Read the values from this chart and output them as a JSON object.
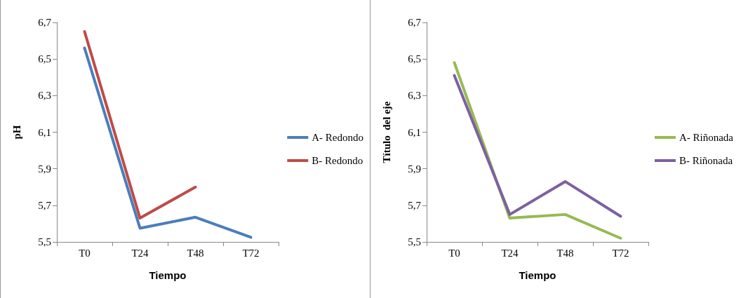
{
  "chart_data": [
    {
      "type": "line",
      "xlabel": "Tiempo",
      "ylabel": "pH",
      "categories": [
        "T0",
        "T24",
        "T48",
        "T72"
      ],
      "series": [
        {
          "name": "A- Redondo",
          "color": "#4a7ebb",
          "values": [
            6.56,
            5.575,
            5.635,
            5.525
          ]
        },
        {
          "name": "B- Redondo",
          "color": "#be4b48",
          "values": [
            6.65,
            5.63,
            5.8,
            null
          ]
        }
      ],
      "ylim": [
        5.5,
        6.7
      ],
      "yticks": [
        {
          "value": 5.5,
          "label": "5,5"
        },
        {
          "value": 5.7,
          "label": "5,7"
        },
        {
          "value": 5.9,
          "label": "5,9"
        },
        {
          "value": 6.1,
          "label": "6,1"
        },
        {
          "value": 6.3,
          "label": "6,3"
        },
        {
          "value": 6.5,
          "label": "6,5"
        },
        {
          "value": 6.7,
          "label": "6,7"
        }
      ],
      "legend": "right",
      "marker": "none",
      "line_style": "solid"
    },
    {
      "type": "line",
      "xlabel": "Tiempo",
      "ylabel": "Título  del eje",
      "categories": [
        "T0",
        "T24",
        "T48",
        "T72"
      ],
      "series": [
        {
          "name": "A- Riñonada",
          "color": "#98b954",
          "values": [
            6.48,
            5.63,
            5.65,
            5.52
          ]
        },
        {
          "name": "B- Riñonada",
          "color": "#7d60a0",
          "values": [
            6.41,
            5.65,
            5.83,
            5.64
          ]
        }
      ],
      "ylim": [
        5.5,
        6.7
      ],
      "yticks": [
        {
          "value": 5.5,
          "label": "5,5"
        },
        {
          "value": 5.7,
          "label": "5,7"
        },
        {
          "value": 5.9,
          "label": "5,9"
        },
        {
          "value": 6.1,
          "label": "6,1"
        },
        {
          "value": 6.3,
          "label": "6,3"
        },
        {
          "value": 6.5,
          "label": "6,5"
        },
        {
          "value": 6.7,
          "label": "6,7"
        }
      ],
      "legend": "right",
      "marker": "none",
      "line_style": "solid"
    }
  ]
}
